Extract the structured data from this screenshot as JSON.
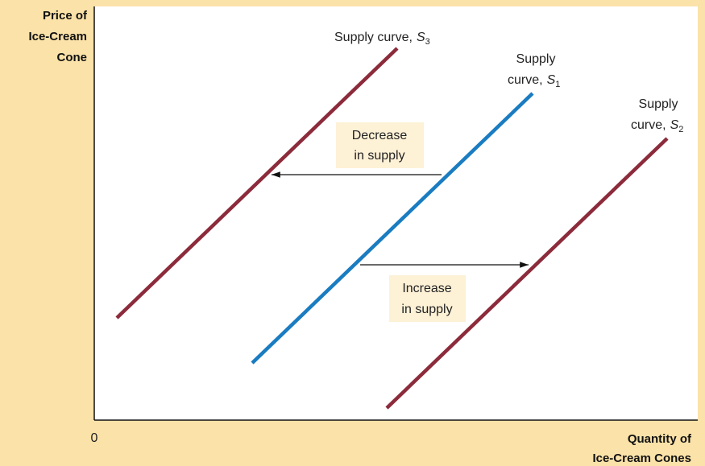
{
  "y_axis_label": [
    "Price of",
    "Ice-Cream",
    "Cone"
  ],
  "x_axis_label": [
    "Quantity of",
    "Ice-Cream Cones"
  ],
  "origin": "0",
  "curves": [
    {
      "label_lines": [
        "Supply curve,"
      ],
      "symbol": "S",
      "subscript": "3"
    },
    {
      "label_lines": [
        "Supply",
        "curve,"
      ],
      "symbol": "S",
      "subscript": "1"
    },
    {
      "label_lines": [
        "Supply",
        "curve,"
      ],
      "symbol": "S",
      "subscript": "2"
    }
  ],
  "shifts": [
    {
      "label_lines": [
        "Decrease",
        "in supply"
      ]
    },
    {
      "label_lines": [
        "Increase",
        "in supply"
      ]
    }
  ]
}
